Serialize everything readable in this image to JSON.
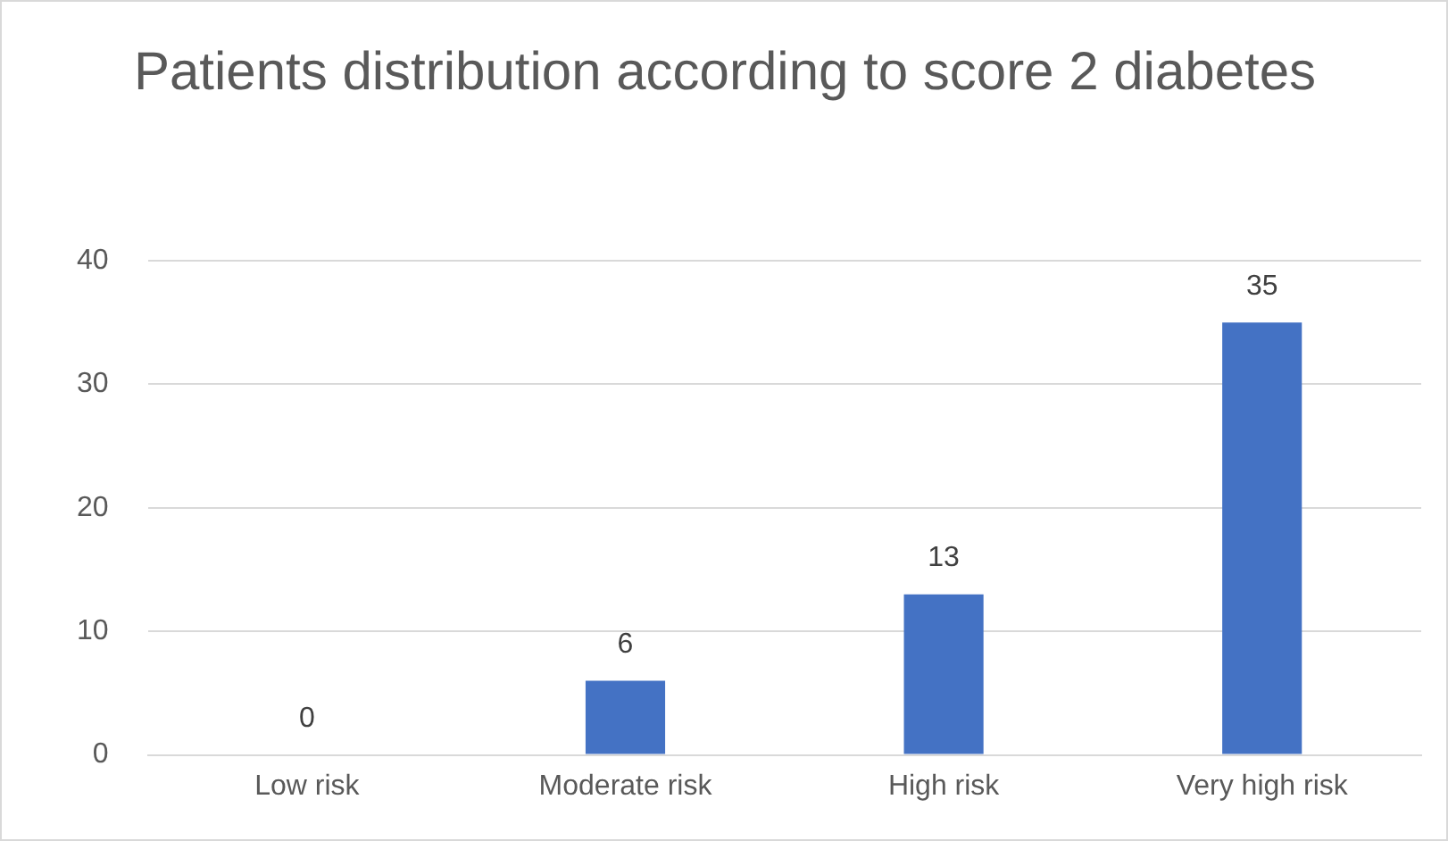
{
  "chart_data": {
    "type": "bar",
    "title": "Patients distribution according to score 2 diabetes",
    "categories": [
      "Low risk",
      "Moderate risk",
      "High risk",
      "Very high risk"
    ],
    "values": [
      0,
      6,
      13,
      35
    ],
    "color": "#4472c4",
    "ylim": [
      0,
      40
    ],
    "yticks": [
      0,
      10,
      20,
      30,
      40
    ],
    "grid": "y",
    "data_labels": true
  }
}
